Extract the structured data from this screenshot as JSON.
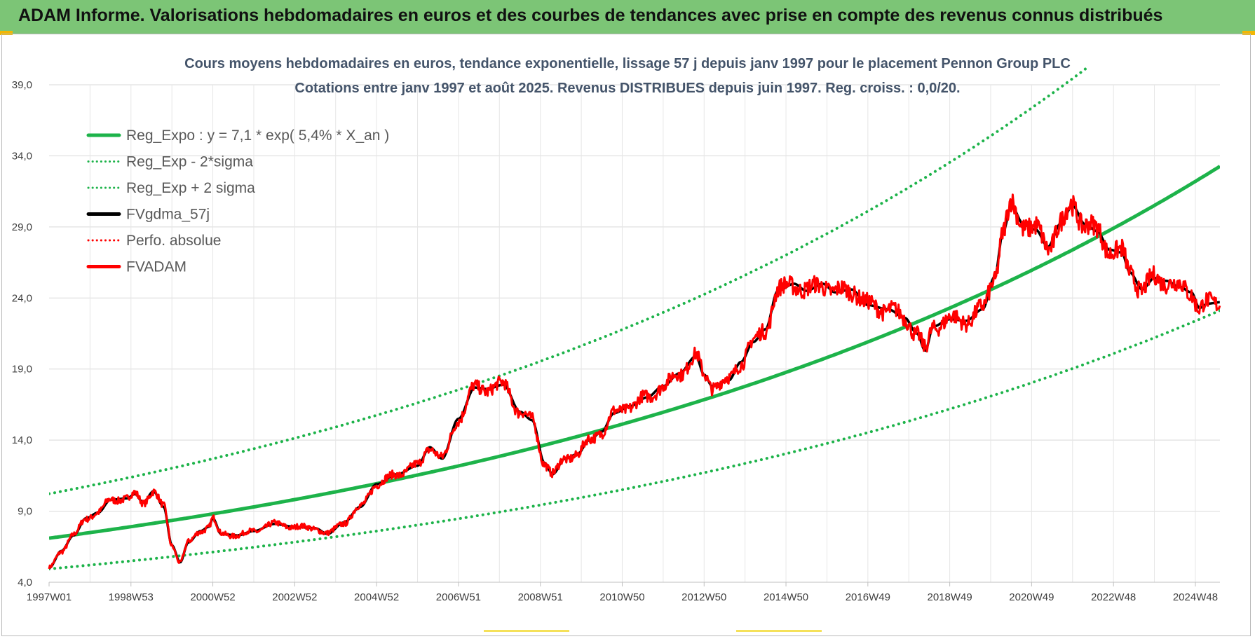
{
  "banner": {
    "title": "ADAM Informe. Valorisations hebdomadaires en euros et des courbes de tendances avec prise en compte des revenus connus distribués"
  },
  "colors": {
    "banner_bg": "#7cc576",
    "trend_green": "#1db34a",
    "price_red": "#ff0000",
    "smooth_black": "#000000",
    "title_text": "#44546a",
    "grid": "#d9d9d9"
  },
  "chart_data": {
    "type": "line",
    "title_line1": "Cours moyens hebdomadaires en euros, tendance exponentielle, lissage 57 j depuis janv 1997  pour le placement Pennon Group PLC",
    "title_line2": "Cotations entre janv 1997 et août 2025. Revenus DISTRIBUES depuis juin 1997.  Reg. croiss. : 0,0/20.",
    "xlabel": "",
    "ylabel": "",
    "x_ticks": [
      "1997W01",
      "1998W53",
      "2000W52",
      "2002W52",
      "2004W52",
      "2006W51",
      "2008W51",
      "2010W50",
      "2012W50",
      "2014W50",
      "2016W49",
      "2018W49",
      "2020W49",
      "2022W48",
      "2024W48"
    ],
    "x_range": [
      1997.0,
      2025.6
    ],
    "y_ticks": [
      "4,0",
      "9,0",
      "14,0",
      "19,0",
      "24,0",
      "29,0",
      "34,0",
      "39,0"
    ],
    "ylim": [
      4.0,
      39.0
    ],
    "grid": true,
    "legend_position": "top-left",
    "regression": {
      "a": 7.1,
      "rate": 0.054,
      "sigma_factor_upper": 1.44,
      "sigma_factor_lower": 0.695
    },
    "legend": [
      {
        "name": "Reg_Expo : y = 7,1 * exp( 5,4% *  X_an )",
        "color": "#1db34a",
        "style": "solid"
      },
      {
        "name": "Reg_Exp - 2*sigma",
        "color": "#1db34a",
        "style": "dotted"
      },
      {
        "name": "Reg_Exp + 2 sigma",
        "color": "#1db34a",
        "style": "dotted"
      },
      {
        "name": "FVgdma_57j",
        "color": "#000000",
        "style": "solid"
      },
      {
        "name": "Perfo. absolue",
        "color": "#ff0000",
        "style": "dotted"
      },
      {
        "name": "FVADAM",
        "color": "#ff0000",
        "style": "solid"
      }
    ],
    "series_fvadam": [
      [
        1997.0,
        5.0
      ],
      [
        1997.3,
        6.2
      ],
      [
        1997.6,
        7.3
      ],
      [
        1997.9,
        8.5
      ],
      [
        1998.2,
        8.9
      ],
      [
        1998.5,
        9.8
      ],
      [
        1998.9,
        9.9
      ],
      [
        1999.1,
        10.2
      ],
      [
        1999.3,
        9.6
      ],
      [
        1999.55,
        10.4
      ],
      [
        1999.8,
        9.3
      ],
      [
        2000.0,
        6.6
      ],
      [
        2000.2,
        5.4
      ],
      [
        2000.4,
        6.8
      ],
      [
        2000.7,
        7.6
      ],
      [
        2000.9,
        7.9
      ],
      [
        2001.0,
        8.5
      ],
      [
        2001.2,
        7.4
      ],
      [
        2001.6,
        7.3
      ],
      [
        2002.0,
        7.6
      ],
      [
        2002.5,
        8.1
      ],
      [
        2003.0,
        7.9
      ],
      [
        2003.5,
        7.8
      ],
      [
        2003.8,
        7.4
      ],
      [
        2004.2,
        8.2
      ],
      [
        2004.6,
        9.3
      ],
      [
        2005.0,
        10.9
      ],
      [
        2005.5,
        11.6
      ],
      [
        2006.0,
        12.2
      ],
      [
        2006.3,
        13.5
      ],
      [
        2006.6,
        12.7
      ],
      [
        2007.0,
        15.5
      ],
      [
        2007.4,
        17.7
      ],
      [
        2007.7,
        17.6
      ],
      [
        2008.1,
        17.9
      ],
      [
        2008.5,
        16.0
      ],
      [
        2008.8,
        15.4
      ],
      [
        2009.1,
        12.4
      ],
      [
        2009.3,
        11.6
      ],
      [
        2009.6,
        12.7
      ],
      [
        2009.9,
        13.0
      ],
      [
        2010.2,
        14.0
      ],
      [
        2010.5,
        14.6
      ],
      [
        2010.8,
        15.9
      ],
      [
        2011.2,
        16.4
      ],
      [
        2011.6,
        17.0
      ],
      [
        2012.0,
        17.8
      ],
      [
        2012.4,
        18.7
      ],
      [
        2012.8,
        19.9
      ],
      [
        2013.0,
        18.6
      ],
      [
        2013.2,
        17.8
      ],
      [
        2013.6,
        18.2
      ],
      [
        2013.9,
        19.5
      ],
      [
        2014.2,
        20.9
      ],
      [
        2014.5,
        21.8
      ],
      [
        2014.8,
        24.5
      ],
      [
        2015.2,
        25.0
      ],
      [
        2015.5,
        24.5
      ],
      [
        2015.9,
        25.0
      ],
      [
        2016.2,
        24.4
      ],
      [
        2016.6,
        24.6
      ],
      [
        2017.0,
        23.5
      ],
      [
        2017.5,
        23.2
      ],
      [
        2017.9,
        22.6
      ],
      [
        2018.2,
        21.5
      ],
      [
        2018.4,
        20.3
      ],
      [
        2018.6,
        22.0
      ],
      [
        2019.0,
        22.5
      ],
      [
        2019.4,
        22.4
      ],
      [
        2019.8,
        23.2
      ],
      [
        2020.1,
        25.5
      ],
      [
        2020.3,
        28.6
      ],
      [
        2020.5,
        30.5
      ],
      [
        2020.8,
        29.2
      ],
      [
        2021.1,
        28.8
      ],
      [
        2021.4,
        27.6
      ],
      [
        2021.7,
        29.2
      ],
      [
        2022.0,
        30.5
      ],
      [
        2022.3,
        29.2
      ],
      [
        2022.6,
        28.7
      ],
      [
        2022.9,
        27.4
      ],
      [
        2023.2,
        27.2
      ],
      [
        2023.4,
        25.8
      ],
      [
        2023.7,
        24.6
      ],
      [
        2024.0,
        25.4
      ],
      [
        2024.3,
        25.2
      ],
      [
        2024.6,
        24.8
      ],
      [
        2024.9,
        24.4
      ],
      [
        2025.1,
        23.3
      ],
      [
        2025.3,
        23.6
      ],
      [
        2025.6,
        23.7
      ]
    ]
  }
}
